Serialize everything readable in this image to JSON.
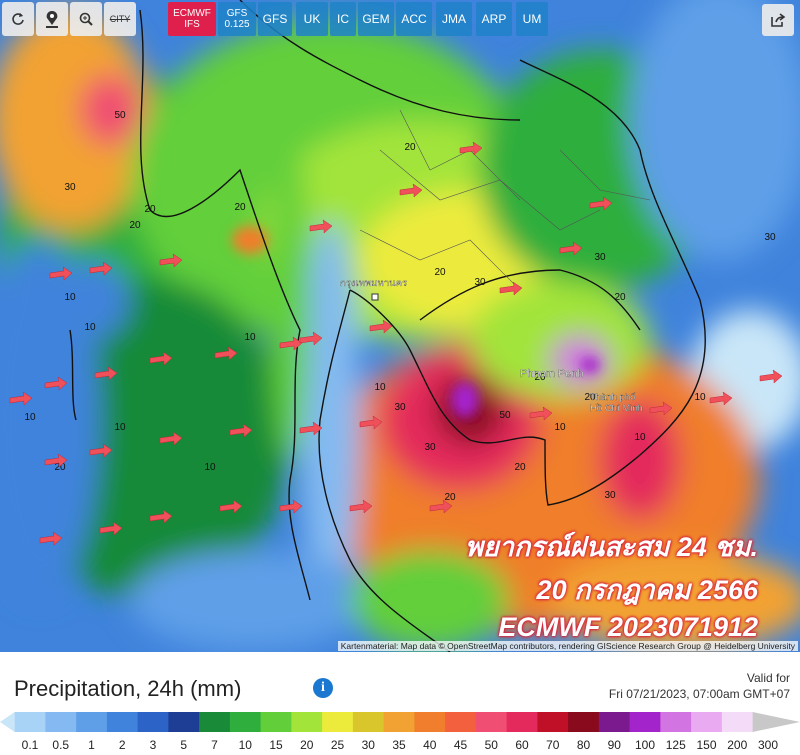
{
  "toolbar": {
    "tools": [
      "CITY"
    ],
    "models": [
      "ECMWF IFS",
      "GFS 0.125",
      "GFS",
      "UK",
      "IC",
      "GEM",
      "ACC",
      "JMA",
      "ARP",
      "UM"
    ]
  },
  "map": {
    "places": [
      "Phnom Penh",
      "Thành phố",
      "Hồ Chí Minh",
      "กรุงเทพมหานคร"
    ],
    "contour_labels": [
      "50",
      "30",
      "20",
      "20",
      "20",
      "10",
      "10",
      "10",
      "20",
      "10",
      "30",
      "20",
      "20",
      "30",
      "10",
      "10",
      "20",
      "50",
      "30",
      "30",
      "20",
      "10",
      "20",
      "10",
      "20",
      "30",
      "20",
      "10",
      "30",
      "10"
    ],
    "overlay": [
      "พยากรณ์ฝนสะสม 24 ชม.",
      "20 กรกฎาคม 2566",
      "ECMWF 2023071912"
    ],
    "attribution": "Kartenmaterial: Map data © OpenStreetMap contributors, rendering GIScience Research Group @ Heidelberg University"
  },
  "panel": {
    "title": "Precipitation, 24h (mm)",
    "valid_label": "Valid for",
    "valid_time": "Fri 07/21/2023, 07:00am GMT+07"
  },
  "legend": {
    "labels": [
      "0.1",
      "0.5",
      "1",
      "2",
      "3",
      "5",
      "7",
      "10",
      "15",
      "20",
      "25",
      "30",
      "35",
      "40",
      "45",
      "50",
      "60",
      "70",
      "80",
      "90",
      "100",
      "125",
      "150",
      "200",
      "300"
    ],
    "colors": [
      "#c9e6f8",
      "#a8d2f6",
      "#84baf1",
      "#5f9fe8",
      "#3f83dc",
      "#2b64c6",
      "#1e3e96",
      "#188a38",
      "#2fae3e",
      "#62cf3a",
      "#a2e43a",
      "#eceb3c",
      "#d8c62c",
      "#f2a232",
      "#f07e2c",
      "#f2603e",
      "#f04e72",
      "#e42a5c",
      "#c01028",
      "#880a1c",
      "#7a1a8e",
      "#a424cc",
      "#d274e2",
      "#eaaaf2",
      "#f4dcf8",
      "#c8c8c8"
    ]
  }
}
